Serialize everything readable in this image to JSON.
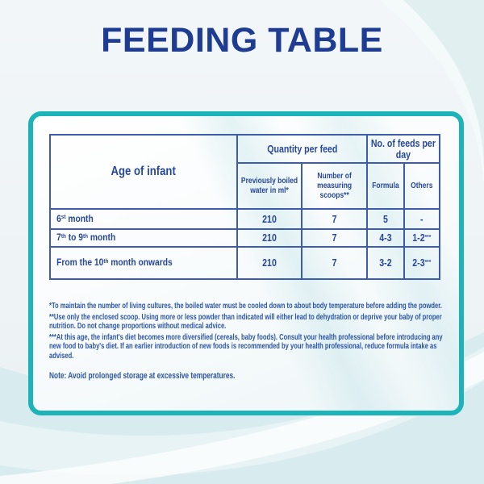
{
  "title": "FEEDING TABLE",
  "colors": {
    "title_blue": "#1d3c92",
    "table_blue": "#3d5dab",
    "text_blue": "#27479a",
    "card_border_teal": "#1cb3b9",
    "background_light": "#eef3f6",
    "swirl_teal": "#d8ebee"
  },
  "table": {
    "headers": {
      "age": "Age of infant",
      "quantity_group": "Quantity per feed",
      "feeds_group": "No. of feeds per day",
      "water": "Previously boiled water in ml*",
      "scoops": "Number of measuring scoops**",
      "formula": "Formula",
      "others": "Others"
    },
    "rows": [
      {
        "age": [
          {
            "t": "6"
          },
          {
            "t": "st",
            "sup": true
          },
          {
            "t": " month"
          }
        ],
        "water": "210",
        "scoops": "7",
        "formula": "5",
        "others": [
          {
            "t": "-"
          }
        ]
      },
      {
        "age": [
          {
            "t": "7"
          },
          {
            "t": "th",
            "sup": true
          },
          {
            "t": " to 9"
          },
          {
            "t": "th",
            "sup": true
          },
          {
            "t": " month"
          }
        ],
        "water": "210",
        "scoops": "7",
        "formula": "4-3",
        "others": [
          {
            "t": "1-2"
          },
          {
            "t": "***",
            "sup": true
          }
        ]
      },
      {
        "age": [
          {
            "t": "From the 10"
          },
          {
            "t": "th",
            "sup": true
          },
          {
            "t": " month onwards"
          }
        ],
        "water": "210",
        "scoops": "7",
        "formula": "3-2",
        "others": [
          {
            "t": "2-3"
          },
          {
            "t": "***",
            "sup": true
          }
        ]
      }
    ]
  },
  "footnotes": [
    "*To maintain the number of living cultures, the boiled water must be cooled down to about body temperature before adding the powder.",
    "**Use only the enclosed scoop. Using more or less powder than indicated will either lead to dehydration or deprive your baby of proper nutrition. Do not change proportions without medical advice.",
    "***At this age, the infant's diet becomes more diversified (cereals, baby foods). Consult your health professional before introducing any new food to baby's diet. If an earlier introduction of new foods is recommended by your health professional, reduce formula intake as advised."
  ],
  "note": "Note: Avoid prolonged storage at excessive temperatures."
}
